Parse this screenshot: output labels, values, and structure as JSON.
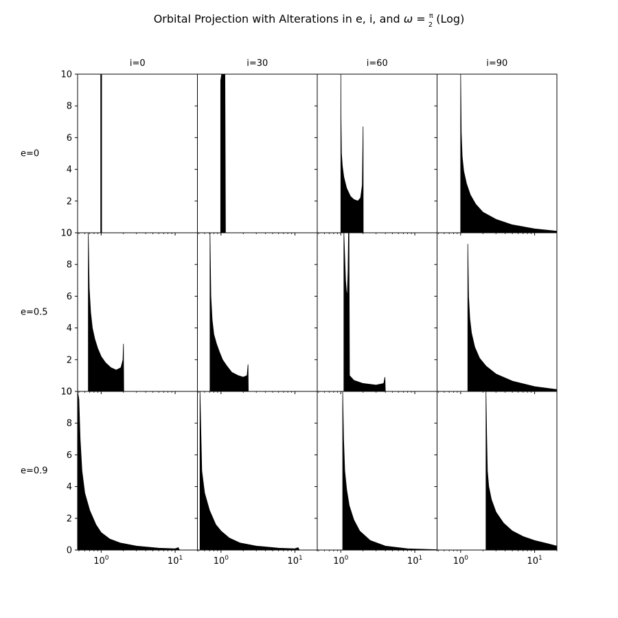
{
  "title": {
    "prefix": "Orbital Projection with Alterations in e, i, and ",
    "omega": "ω",
    "equals": " = ",
    "frac_num": "π",
    "frac_den": "2",
    "suffix": " (Log)"
  },
  "chart_data": {
    "type": "histogram-grid",
    "x_scale": "log",
    "xlim": [
      0.48,
      20
    ],
    "ylim": [
      0,
      10
    ],
    "y_ticks": [
      0,
      2,
      4,
      6,
      8,
      10
    ],
    "x_ticks": [
      1,
      10
    ],
    "x_tick_labels": [
      {
        "base": "10",
        "exp": "0"
      },
      {
        "base": "10",
        "exp": "1"
      }
    ],
    "col_labels": [
      "i=0",
      "i=30",
      "i=60",
      "i=90"
    ],
    "row_labels": [
      "e=0",
      "e=0.5",
      "e=0.9"
    ],
    "bar_color": "#000000",
    "panels": [
      [
        {
          "curve": [
            [
              0.985,
              0
            ],
            [
              0.985,
              10
            ],
            [
              1.015,
              10
            ],
            [
              1.015,
              0
            ]
          ]
        },
        {
          "curve": [
            [
              0.99,
              0
            ],
            [
              0.99,
              9.6
            ],
            [
              1.02,
              10
            ],
            [
              1.13,
              10
            ],
            [
              1.15,
              0
            ]
          ]
        },
        {
          "curve": [
            [
              1.0,
              0
            ],
            [
              1.0,
              10
            ],
            [
              1.005,
              7.3
            ],
            [
              1.02,
              5.0
            ],
            [
              1.05,
              4.2
            ],
            [
              1.1,
              3.5
            ],
            [
              1.2,
              2.8
            ],
            [
              1.35,
              2.3
            ],
            [
              1.5,
              2.1
            ],
            [
              1.7,
              2.0
            ],
            [
              1.85,
              2.2
            ],
            [
              1.95,
              3.0
            ],
            [
              2.0,
              6.7
            ],
            [
              2.01,
              0
            ]
          ]
        },
        {
          "curve": [
            [
              1.0,
              0
            ],
            [
              1.0,
              10
            ],
            [
              1.02,
              6.3
            ],
            [
              1.05,
              4.8
            ],
            [
              1.1,
              3.9
            ],
            [
              1.2,
              3.1
            ],
            [
              1.35,
              2.4
            ],
            [
              1.6,
              1.8
            ],
            [
              2.0,
              1.3
            ],
            [
              3.0,
              0.85
            ],
            [
              5.0,
              0.5
            ],
            [
              10.0,
              0.25
            ],
            [
              20.0,
              0.1
            ]
          ]
        }
      ],
      [
        {
          "curve": [
            [
              0.67,
              0
            ],
            [
              0.67,
              10
            ],
            [
              0.69,
              6.5
            ],
            [
              0.72,
              5.0
            ],
            [
              0.76,
              4.0
            ],
            [
              0.82,
              3.3
            ],
            [
              0.9,
              2.7
            ],
            [
              1.0,
              2.2
            ],
            [
              1.15,
              1.8
            ],
            [
              1.35,
              1.5
            ],
            [
              1.6,
              1.35
            ],
            [
              1.85,
              1.5
            ],
            [
              1.97,
              2.0
            ],
            [
              2.0,
              3.0
            ],
            [
              2.02,
              0
            ]
          ]
        },
        {
          "curve": [
            [
              0.71,
              0
            ],
            [
              0.71,
              10
            ],
            [
              0.73,
              6.0
            ],
            [
              0.76,
              4.5
            ],
            [
              0.8,
              3.6
            ],
            [
              0.87,
              3.0
            ],
            [
              0.95,
              2.5
            ],
            [
              1.05,
              2.0
            ],
            [
              1.2,
              1.6
            ],
            [
              1.4,
              1.2
            ],
            [
              1.7,
              1.0
            ],
            [
              2.0,
              0.9
            ],
            [
              2.25,
              1.0
            ],
            [
              2.32,
              1.7
            ],
            [
              2.34,
              0
            ]
          ]
        },
        {
          "curve": [
            [
              1.1,
              0
            ],
            [
              1.1,
              10
            ],
            [
              1.13,
              8.5
            ],
            [
              1.16,
              7.0
            ],
            [
              1.19,
              6.3
            ],
            [
              1.22,
              6.0
            ],
            [
              1.25,
              7.5
            ],
            [
              1.27,
              10
            ],
            [
              1.29,
              10
            ],
            [
              1.31,
              1.0
            ],
            [
              1.5,
              0.7
            ],
            [
              2.0,
              0.5
            ],
            [
              3.0,
              0.4
            ],
            [
              3.8,
              0.5
            ],
            [
              3.95,
              0.9
            ],
            [
              4.0,
              0
            ]
          ]
        },
        {
          "curve": [
            [
              1.25,
              0
            ],
            [
              1.25,
              9.3
            ],
            [
              1.28,
              6.0
            ],
            [
              1.33,
              4.6
            ],
            [
              1.4,
              3.7
            ],
            [
              1.55,
              2.8
            ],
            [
              1.8,
              2.1
            ],
            [
              2.2,
              1.6
            ],
            [
              3.0,
              1.1
            ],
            [
              5.0,
              0.65
            ],
            [
              10.0,
              0.3
            ],
            [
              20.0,
              0.12
            ]
          ]
        }
      ],
      [
        {
          "curve": [
            [
              0.48,
              0
            ],
            [
              0.48,
              10
            ],
            [
              0.5,
              9.5
            ],
            [
              0.52,
              7.0
            ],
            [
              0.55,
              5.0
            ],
            [
              0.6,
              3.6
            ],
            [
              0.7,
              2.5
            ],
            [
              0.85,
              1.6
            ],
            [
              1.0,
              1.1
            ],
            [
              1.3,
              0.7
            ],
            [
              1.8,
              0.45
            ],
            [
              3.0,
              0.25
            ],
            [
              6.0,
              0.12
            ],
            [
              10.0,
              0.08
            ],
            [
              11.0,
              0.15
            ],
            [
              11.5,
              0
            ]
          ]
        },
        {
          "curve": [
            [
              0.52,
              0
            ],
            [
              0.52,
              10
            ],
            [
              0.55,
              5.0
            ],
            [
              0.6,
              3.6
            ],
            [
              0.7,
              2.5
            ],
            [
              0.85,
              1.6
            ],
            [
              1.0,
              1.2
            ],
            [
              1.3,
              0.75
            ],
            [
              1.8,
              0.45
            ],
            [
              3.0,
              0.25
            ],
            [
              6.0,
              0.12
            ],
            [
              10.0,
              0.08
            ],
            [
              11.0,
              0.15
            ],
            [
              11.5,
              0
            ]
          ]
        },
        {
          "curve": [
            [
              1.06,
              0
            ],
            [
              1.06,
              10
            ],
            [
              1.09,
              7.0
            ],
            [
              1.13,
              5.0
            ],
            [
              1.2,
              3.8
            ],
            [
              1.3,
              2.8
            ],
            [
              1.5,
              1.9
            ],
            [
              1.8,
              1.2
            ],
            [
              2.5,
              0.6
            ],
            [
              4.0,
              0.25
            ],
            [
              8.0,
              0.08
            ],
            [
              20.0,
              0.02
            ]
          ]
        },
        {
          "curve": [
            [
              2.2,
              0
            ],
            [
              2.2,
              10
            ],
            [
              2.25,
              7.2
            ],
            [
              2.3,
              5.0
            ],
            [
              2.4,
              4.0
            ],
            [
              2.6,
              3.2
            ],
            [
              3.0,
              2.4
            ],
            [
              3.8,
              1.7
            ],
            [
              5.0,
              1.2
            ],
            [
              7.0,
              0.85
            ],
            [
              10.0,
              0.6
            ],
            [
              15.0,
              0.4
            ],
            [
              20.0,
              0.25
            ]
          ]
        }
      ]
    ]
  }
}
